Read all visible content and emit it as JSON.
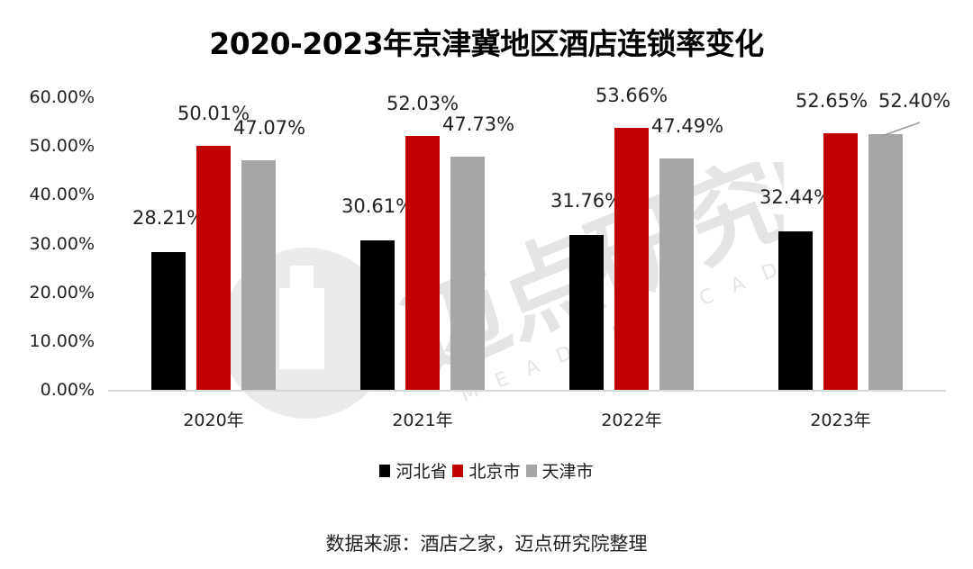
{
  "title": "2020-2023年京津冀地区酒店连锁率变化",
  "source_note": "数据来源：酒店之家，迈点研究院整理",
  "watermark": {
    "text": "迈点研究院",
    "subtext": "MEADIN ACADEMY"
  },
  "colors": {
    "hebei": "#000000",
    "beijing": "#c00000",
    "tianjin": "#a6a6a6",
    "axis": "#d9d9d9"
  },
  "yaxis": {
    "ticks": [
      "0.00%",
      "10.00%",
      "20.00%",
      "30.00%",
      "40.00%",
      "50.00%",
      "60.00%"
    ]
  },
  "legend": [
    {
      "label": "河北省",
      "color": "#000000"
    },
    {
      "label": "北京市",
      "color": "#c00000"
    },
    {
      "label": "天津市",
      "color": "#a6a6a6"
    }
  ],
  "chart_data": {
    "type": "bar",
    "title": "2020-2023年京津冀地区酒店连锁率变化",
    "categories": [
      "2020年",
      "2021年",
      "2022年",
      "2023年"
    ],
    "series": [
      {
        "name": "河北省",
        "color": "#000000",
        "values": [
          28.21,
          30.61,
          31.76,
          32.44
        ],
        "labels": [
          "28.21%",
          "30.61%",
          "31.76%",
          "32.44%"
        ]
      },
      {
        "name": "北京市",
        "color": "#c00000",
        "values": [
          50.01,
          52.03,
          53.66,
          52.65
        ],
        "labels": [
          "50.01%",
          "52.03%",
          "53.66%",
          "52.65%"
        ]
      },
      {
        "name": "天津市",
        "color": "#a6a6a6",
        "values": [
          47.07,
          47.73,
          47.49,
          52.4
        ],
        "labels": [
          "47.07%",
          "47.73%",
          "47.49%",
          "52.40%"
        ]
      }
    ],
    "xlabel": "",
    "ylabel": "",
    "ylim": [
      0,
      60
    ],
    "ytick_format": "0.00%",
    "grid": false,
    "legend_position": "bottom",
    "source": "数据来源：酒店之家，迈点研究院整理"
  }
}
